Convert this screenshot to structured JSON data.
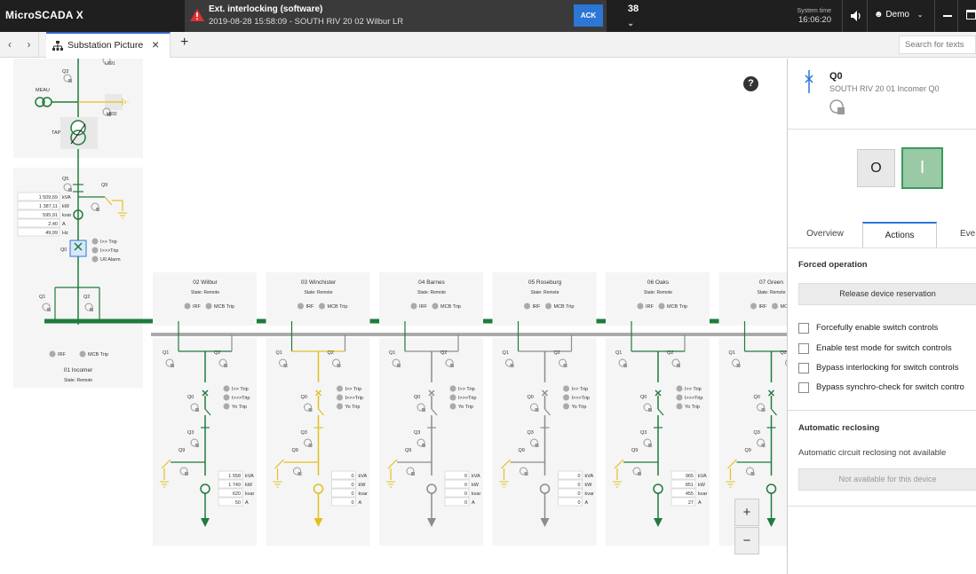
{
  "app": {
    "title": "MicroSCADA X"
  },
  "alarm": {
    "title": "Ext. interlocking (software)",
    "detail": "2019-08-28 15:58:09 - SOUTH RIV 20 02 Wilbur LR",
    "ack_label": "ACK",
    "count": "38"
  },
  "system_time": {
    "label": "System time",
    "value": "16:06:20"
  },
  "user": {
    "name": "Demo"
  },
  "tabs": [
    {
      "label": "Substation Picture"
    }
  ],
  "search": {
    "placeholder": "Search for texts"
  },
  "incomer": {
    "name": "01 Incomer",
    "state": "State: Remote",
    "measurements": [
      {
        "value": "1 509,69",
        "unit": "kVA"
      },
      {
        "value": "1 387,11",
        "unit": "kW"
      },
      {
        "value": "595,91",
        "unit": "kvar"
      },
      {
        "value": "2,40",
        "unit": "A"
      },
      {
        "value": "49,99",
        "unit": "Hz"
      }
    ],
    "labels": {
      "meau": "MEAU",
      "tap": "TAP",
      "q3": "Q3",
      "q5": "Q5",
      "q9": "Q9",
      "q0": "Q0",
      "q1": "Q1",
      "q2": "Q2",
      "lbl1": "LB91",
      "lbl2": "LB92"
    },
    "trips": [
      "I>> Trip",
      "I>>>Trip",
      "U0 Alarm"
    ],
    "irf": "IRF",
    "mcb": "MCB Trip"
  },
  "feeder_labels": {
    "q0": "Q0",
    "q1": "Q1",
    "q2": "Q2",
    "q3": "Q3",
    "q9": "Q9",
    "irf": "IRF",
    "mcb": "MCB Trip",
    "state": "State: Remote",
    "trips": [
      "I>> Trip",
      "I>>>Trip",
      "Yo Trip"
    ],
    "units": [
      "kVA",
      "kW",
      "kvar",
      "A"
    ]
  },
  "feeders": [
    {
      "name": "02 Wilbur",
      "values": [
        "1 558",
        "1 749",
        "620",
        "50"
      ],
      "color": "#1e7b3c"
    },
    {
      "name": "03 Winchister",
      "values": [
        "0",
        "0",
        "0",
        "0"
      ],
      "color": "#e0c020"
    },
    {
      "name": "04 Barnes",
      "values": [
        "0",
        "0",
        "0",
        "0"
      ],
      "color": "#8c8c8c"
    },
    {
      "name": "05 Roseburg",
      "values": [
        "0",
        "0",
        "0",
        "0"
      ],
      "color": "#8c8c8c"
    },
    {
      "name": "06 Oaks",
      "values": [
        "965",
        "851",
        "455",
        "27"
      ],
      "color": "#1e7b3c"
    },
    {
      "name": "07 Green",
      "values": [
        "",
        "",
        "",
        ""
      ],
      "color": "#1e7b3c"
    }
  ],
  "colors": {
    "busbar_energized": "#1e7b3c",
    "busbar_dead": "#8c8c8c",
    "earthed": "#e0c020",
    "accent": "#2c76d6"
  },
  "panel": {
    "device": "Q0",
    "description": "SOUTH RIV 20 01 Incomer Q0",
    "open_label": "O",
    "close_label": "I",
    "tabs": [
      "Overview",
      "Actions",
      "Eve"
    ],
    "forced_title": "Forced operation",
    "release_button": "Release device reservation",
    "checkboxes": [
      "Forcefully enable switch controls",
      "Enable test mode for switch controls",
      "Bypass interlocking for switch controls",
      "Bypass synchro-check for switch contro"
    ],
    "reclosing_title": "Automatic reclosing",
    "reclosing_text": "Automatic circuit reclosing not available",
    "reclosing_button": "Not available for this device"
  },
  "zoom": {
    "in": "+",
    "out": "−"
  },
  "help": "?"
}
